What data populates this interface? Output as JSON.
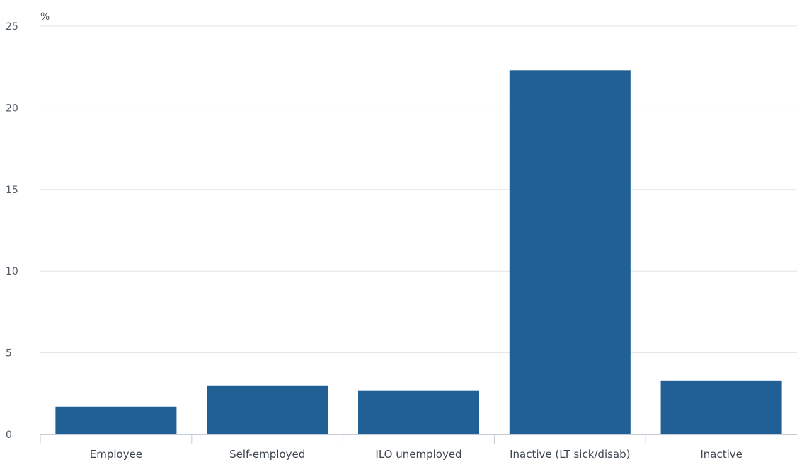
{
  "chart_data": {
    "type": "bar",
    "ylabel": "%",
    "categories": [
      "Employee",
      "Self-employed",
      "ILO unemployed",
      "Inactive (LT sick/disab)",
      "Inactive"
    ],
    "series": [
      {
        "values": [
          1.7,
          3.0,
          2.7,
          22.3,
          3.3
        ],
        "color": "#206095"
      }
    ],
    "ylim": [
      0,
      25
    ],
    "yticks": [
      0,
      5,
      10,
      15,
      20,
      25
    ],
    "grid": true,
    "legend": "none"
  },
  "colors": {
    "bar": "#206095",
    "grid": "#e2e6ea",
    "axis": "#c5ccd6"
  }
}
